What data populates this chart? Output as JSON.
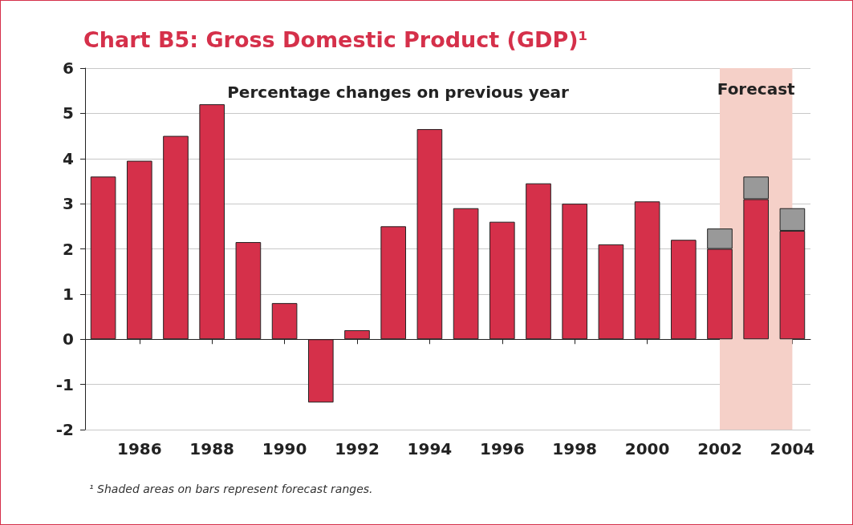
{
  "chart_data": {
    "type": "bar",
    "title": "Chart B5: Gross Domestic Product (GDP)¹",
    "subtitle": "Percentage changes on previous year",
    "categories": [
      null,
      "1986",
      null,
      "1988",
      null,
      "1990",
      null,
      "1992",
      null,
      "1994",
      null,
      "1996",
      null,
      "1998",
      null,
      "2000",
      null,
      "2002",
      null,
      "2004"
    ],
    "stacked": true,
    "series": [
      {
        "color": "#d5304a",
        "values": [
          3.6,
          3.95,
          4.5,
          5.2,
          2.15,
          0.8,
          -1.4,
          0.2,
          2.5,
          4.65,
          2.9,
          2.6,
          3.45,
          3.0,
          2.1,
          3.05,
          2.2,
          2.0,
          3.1,
          2.4
        ]
      },
      {
        "color": "#999999",
        "values": [
          null,
          null,
          null,
          null,
          null,
          null,
          null,
          null,
          null,
          null,
          null,
          null,
          null,
          null,
          null,
          null,
          null,
          0.45,
          0.5,
          0.5
        ]
      }
    ],
    "ylim": [
      -2,
      6
    ],
    "yticks": [
      -2,
      -1,
      0,
      1,
      2,
      3,
      4,
      5,
      6
    ],
    "grid": "y",
    "bands": [
      {
        "axis": "x",
        "from": "2002",
        "to": "2004",
        "label": "Forecast",
        "color": "#f5d0c8"
      }
    ],
    "annotations": [
      "¹ Shaded areas on bars represent forecast ranges."
    ]
  }
}
